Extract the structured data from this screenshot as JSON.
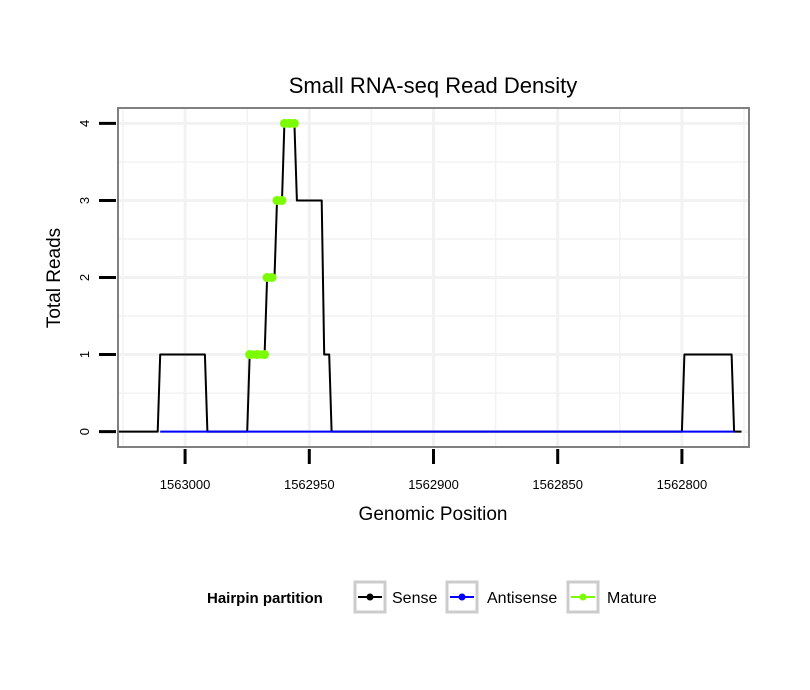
{
  "chart_data": {
    "type": "line",
    "title": "Small RNA-seq Read Density",
    "xlabel": "Genomic Position",
    "ylabel": "Total Reads",
    "x_reversed": true,
    "xlim": [
      1563027,
      1562773
    ],
    "ylim": [
      -0.2,
      4.2
    ],
    "xticks": [
      1563000,
      1562950,
      1562900,
      1562850,
      1562800
    ],
    "xtick_labels": [
      "1563000",
      "1562950",
      "1562900",
      "1562850",
      "1562800"
    ],
    "yticks": [
      0,
      1,
      2,
      3,
      4
    ],
    "ytick_labels": [
      "0",
      "1",
      "2",
      "3",
      "4"
    ],
    "grid": true,
    "legend": {
      "title": "Hairpin partition",
      "position": "bottom",
      "entries": [
        "Sense",
        "Antisense",
        "Mature"
      ]
    },
    "series": [
      {
        "name": "Sense",
        "color": "#000000",
        "points": [
          [
            1563027,
            0
          ],
          [
            1563011,
            0
          ],
          [
            1563010,
            1
          ],
          [
            1562992,
            1
          ],
          [
            1562991,
            0
          ],
          [
            1562975,
            0
          ],
          [
            1562974,
            1
          ],
          [
            1562968,
            1
          ],
          [
            1562967,
            2
          ],
          [
            1562964,
            2
          ],
          [
            1562963,
            3
          ],
          [
            1562961,
            3
          ],
          [
            1562960,
            4
          ],
          [
            1562956,
            4
          ],
          [
            1562955,
            3
          ],
          [
            1562945,
            3
          ],
          [
            1562944,
            1
          ],
          [
            1562942,
            1
          ],
          [
            1562941,
            0
          ],
          [
            1562800,
            0
          ],
          [
            1562799,
            1
          ],
          [
            1562780,
            1
          ],
          [
            1562779,
            0
          ],
          [
            1562776,
            0
          ]
        ]
      },
      {
        "name": "Antisense",
        "color": "#0000ff",
        "points": [
          [
            1563010,
            0
          ],
          [
            1562991,
            0
          ],
          [
            1562974,
            0
          ],
          [
            1562941,
            0
          ],
          [
            1562799,
            0
          ],
          [
            1562779,
            0
          ]
        ]
      },
      {
        "name": "Mature",
        "color": "#7cfc00",
        "points": [
          [
            1562974,
            1
          ],
          [
            1562971,
            1
          ],
          [
            1562968,
            1
          ],
          [
            1562967,
            2
          ],
          [
            1562965,
            2
          ],
          [
            1562963,
            3
          ],
          [
            1562961,
            3
          ],
          [
            1562960,
            4
          ],
          [
            1562958,
            4
          ],
          [
            1562956,
            4
          ]
        ]
      }
    ]
  }
}
